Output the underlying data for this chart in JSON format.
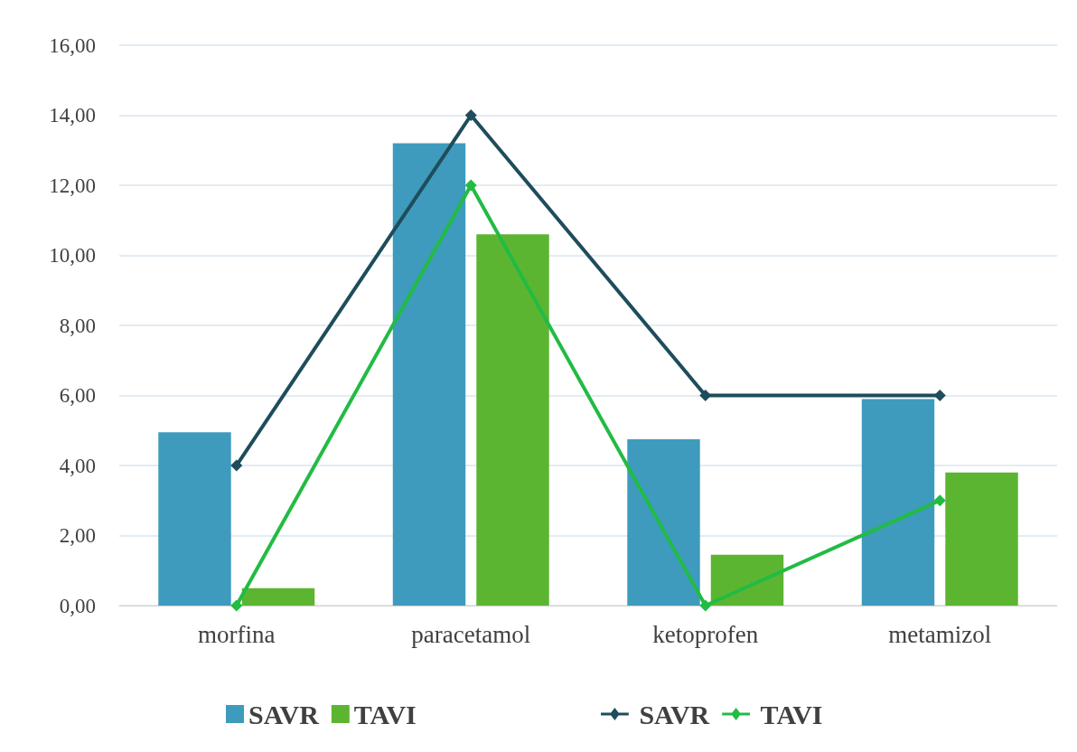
{
  "chart_data": {
    "type": "bar",
    "categories": [
      "morfina",
      "paracetamol",
      "ketoprofen",
      "metamizol"
    ],
    "series": [
      {
        "name": "SAVR",
        "color": "#3e9bbd",
        "values": [
          4.95,
          13.2,
          4.75,
          5.9
        ]
      },
      {
        "name": "TAVI",
        "color": "#5cb531",
        "values": [
          0.5,
          10.6,
          1.45,
          3.8
        ]
      },
      {
        "name": "SAVR",
        "type": "line",
        "color": "#1e4d5c",
        "values": [
          4,
          14,
          6,
          6
        ]
      },
      {
        "name": "TAVI",
        "type": "line",
        "color": "#22bb44",
        "values": [
          0,
          12,
          0,
          3
        ]
      }
    ],
    "ylim": [
      0,
      16
    ],
    "yticks": [
      {
        "value": 0,
        "label": "0,00"
      },
      {
        "value": 2,
        "label": "2,00"
      },
      {
        "value": 4,
        "label": "4,00"
      },
      {
        "value": 6,
        "label": "6,00"
      },
      {
        "value": 8,
        "label": "8,00"
      },
      {
        "value": 10,
        "label": "10,00"
      },
      {
        "value": 12,
        "label": "12,00"
      },
      {
        "value": 14,
        "label": "14,00"
      },
      {
        "value": 16,
        "label": "16,00"
      }
    ],
    "grid": "y",
    "legend": "bottom",
    "marker": "diamond",
    "line_style": "solid"
  }
}
